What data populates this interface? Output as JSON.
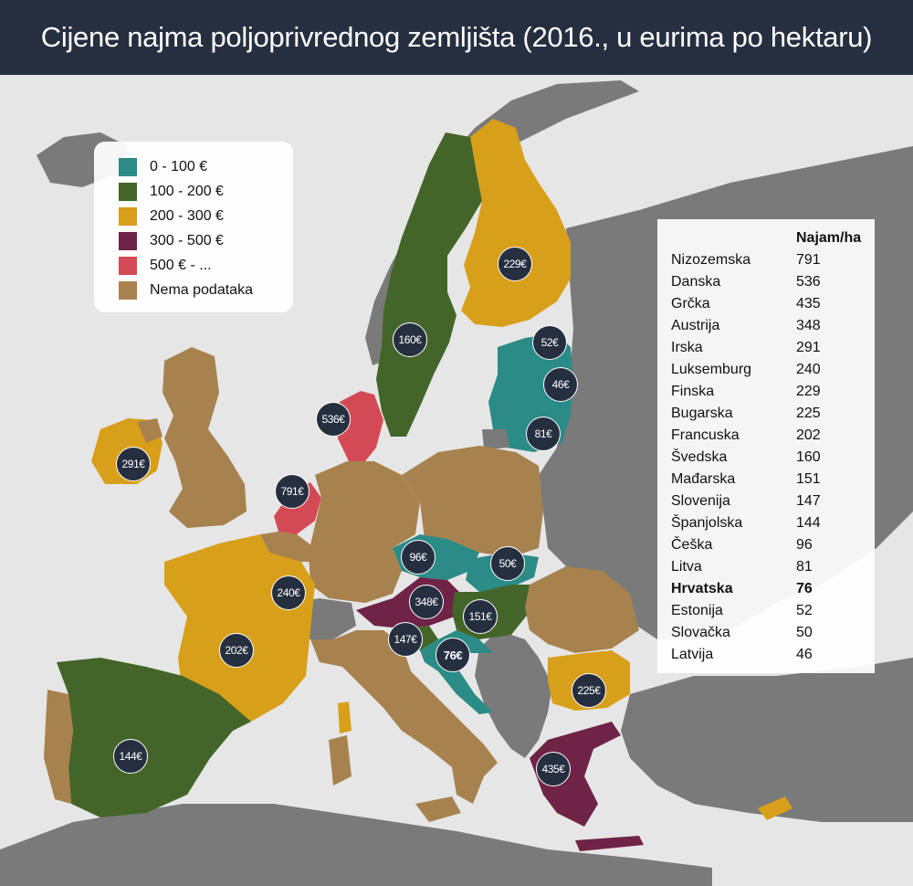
{
  "title": "Cijene najma poljoprivrednog zemljišta (2016., u eurima po hektaru)",
  "colors": {
    "teal": "#2b8b87",
    "green": "#44652a",
    "gold": "#d89f1a",
    "maroon": "#6f2346",
    "red": "#d34a55",
    "brown": "#a8824e",
    "non_eu": "#7a7a7a",
    "sea": "#e6e6e6",
    "badge": "#262f40"
  },
  "legend": [
    {
      "label": "0 - 100 €",
      "color": "#2b8b87"
    },
    {
      "label": "100 - 200 €",
      "color": "#44652a"
    },
    {
      "label": "200 - 300 €",
      "color": "#d89f1a"
    },
    {
      "label": "300 - 500 €",
      "color": "#6f2346"
    },
    {
      "label": "500 € - ...",
      "color": "#d34a55"
    },
    {
      "label": "Nema podataka",
      "color": "#a8824e"
    }
  ],
  "table": {
    "header": "Najam/ha",
    "rows": [
      {
        "country": "Nizozemska",
        "value": "791"
      },
      {
        "country": "Danska",
        "value": "536"
      },
      {
        "country": "Grčka",
        "value": "435"
      },
      {
        "country": "Austrija",
        "value": "348"
      },
      {
        "country": "Irska",
        "value": "291"
      },
      {
        "country": "Luksemburg",
        "value": "240"
      },
      {
        "country": "Finska",
        "value": "229"
      },
      {
        "country": "Bugarska",
        "value": "225"
      },
      {
        "country": "Francuska",
        "value": "202"
      },
      {
        "country": "Švedska",
        "value": "160"
      },
      {
        "country": "Mađarska",
        "value": "151"
      },
      {
        "country": "Slovenija",
        "value": "147"
      },
      {
        "country": "Španjolska",
        "value": "144"
      },
      {
        "country": "Češka",
        "value": "96"
      },
      {
        "country": "Litva",
        "value": "81"
      },
      {
        "country": "Hrvatska",
        "value": "76"
      },
      {
        "country": "Estonija",
        "value": "52"
      },
      {
        "country": "Slovačka",
        "value": "50"
      },
      {
        "country": "Latvija",
        "value": "46"
      }
    ]
  },
  "badges": {
    "finland": "229€",
    "sweden": "160€",
    "estonia": "52€",
    "latvia": "46€",
    "lithuania": "81€",
    "denmark": "536€",
    "ireland": "291€",
    "netherlands": "791€",
    "luxembourg": "240€",
    "france": "202€",
    "spain": "144€",
    "czechia": "96€",
    "slovakia": "50€",
    "austria": "348€",
    "hungary": "151€",
    "slovenia": "147€",
    "croatia": "76€",
    "bulgaria": "225€",
    "greece": "435€"
  }
}
